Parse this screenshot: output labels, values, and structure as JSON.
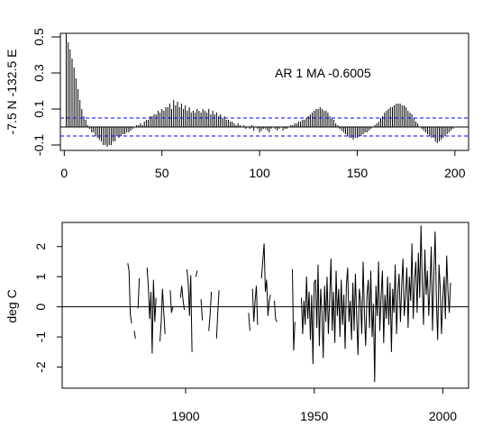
{
  "chart_data": [
    {
      "type": "bar",
      "title": "",
      "ylabel": "-7.5 N -132.5 E",
      "xlabel": "",
      "annotation": "AR 1  MA -0.6005",
      "xlim": [
        -2,
        207
      ],
      "ylim": [
        -0.13,
        0.52
      ],
      "xticks": [
        0,
        50,
        100,
        150,
        200
      ],
      "yticks": [
        -0.1,
        0.1,
        0.3,
        0.5
      ],
      "ytick_labels": [
        "-0.1",
        "0.1",
        "0.3",
        "0.5"
      ],
      "confidence_band": [
        -0.05,
        0.05
      ],
      "lags": [
        1,
        2,
        3,
        4,
        5,
        6,
        7,
        8,
        9,
        10,
        11,
        12,
        13,
        14,
        15,
        16,
        17,
        18,
        19,
        20,
        21,
        22,
        23,
        24,
        25,
        26,
        27,
        28,
        29,
        30,
        31,
        32,
        33,
        34,
        35,
        36,
        37,
        38,
        39,
        40,
        41,
        42,
        43,
        44,
        45,
        46,
        47,
        48,
        49,
        50,
        51,
        52,
        53,
        54,
        55,
        56,
        57,
        58,
        59,
        60,
        61,
        62,
        63,
        64,
        65,
        66,
        67,
        68,
        69,
        70,
        71,
        72,
        73,
        74,
        75,
        76,
        77,
        78,
        79,
        80,
        81,
        82,
        83,
        84,
        85,
        86,
        87,
        88,
        89,
        90,
        91,
        92,
        93,
        94,
        95,
        96,
        97,
        98,
        99,
        100,
        101,
        102,
        103,
        104,
        105,
        106,
        107,
        108,
        109,
        110,
        111,
        112,
        113,
        114,
        115,
        116,
        117,
        118,
        119,
        120,
        121,
        122,
        123,
        124,
        125,
        126,
        127,
        128,
        129,
        130,
        131,
        132,
        133,
        134,
        135,
        136,
        137,
        138,
        139,
        140,
        141,
        142,
        143,
        144,
        145,
        146,
        147,
        148,
        149,
        150,
        151,
        152,
        153,
        154,
        155,
        156,
        157,
        158,
        159,
        160,
        161,
        162,
        163,
        164,
        165,
        166,
        167,
        168,
        169,
        170,
        171,
        172,
        173,
        174,
        175,
        176,
        177,
        178,
        179,
        180,
        181,
        182,
        183,
        184,
        185,
        186,
        187,
        188,
        189,
        190,
        191,
        192,
        193,
        194,
        195,
        196,
        197,
        198,
        199,
        200
      ],
      "values": [
        0.52,
        0.47,
        0.43,
        0.38,
        0.33,
        0.27,
        0.21,
        0.15,
        0.1,
        0.06,
        0.04,
        0.01,
        -0.01,
        -0.03,
        -0.03,
        -0.05,
        -0.06,
        -0.07,
        -0.08,
        -0.1,
        -0.1,
        -0.11,
        -0.1,
        -0.1,
        -0.08,
        -0.08,
        -0.05,
        -0.06,
        -0.05,
        -0.04,
        -0.04,
        -0.03,
        -0.03,
        -0.02,
        -0.01,
        0.0,
        0.01,
        0.01,
        0.02,
        0.01,
        0.03,
        0.04,
        0.04,
        0.06,
        0.06,
        0.07,
        0.07,
        0.09,
        0.08,
        0.1,
        0.09,
        0.11,
        0.11,
        0.13,
        0.1,
        0.15,
        0.12,
        0.14,
        0.11,
        0.13,
        0.1,
        0.12,
        0.09,
        0.11,
        0.08,
        0.09,
        0.08,
        0.1,
        0.09,
        0.08,
        0.1,
        0.09,
        0.08,
        0.1,
        0.07,
        0.09,
        0.07,
        0.08,
        0.06,
        0.07,
        0.05,
        0.06,
        0.04,
        0.04,
        0.03,
        0.03,
        0.02,
        0.01,
        0.02,
        0.01,
        0.0,
        0.01,
        -0.01,
        0.0,
        -0.01,
        0.01,
        -0.02,
        0.0,
        -0.01,
        -0.03,
        -0.02,
        -0.01,
        -0.01,
        -0.02,
        -0.03,
        -0.01,
        0.0,
        -0.01,
        -0.02,
        -0.01,
        0.0,
        -0.02,
        -0.01,
        -0.01,
        0.0,
        0.01,
        0.01,
        0.02,
        0.02,
        0.03,
        0.03,
        0.04,
        0.04,
        0.05,
        0.06,
        0.07,
        0.08,
        0.09,
        0.1,
        0.1,
        0.11,
        0.1,
        0.09,
        0.09,
        0.08,
        0.06,
        0.05,
        0.04,
        0.02,
        0.01,
        -0.01,
        -0.02,
        -0.03,
        -0.04,
        -0.05,
        -0.06,
        -0.06,
        -0.07,
        -0.06,
        -0.06,
        -0.05,
        -0.05,
        -0.04,
        -0.03,
        -0.03,
        -0.02,
        -0.01,
        0.0,
        0.01,
        0.02,
        0.03,
        0.05,
        0.06,
        0.08,
        0.09,
        0.1,
        0.11,
        0.11,
        0.12,
        0.13,
        0.13,
        0.13,
        0.12,
        0.12,
        0.11,
        0.09,
        0.08,
        0.07,
        0.05,
        0.03,
        0.02,
        0.0,
        -0.01,
        -0.02,
        -0.03,
        -0.04,
        -0.05,
        -0.06,
        -0.06,
        -0.08,
        -0.09,
        -0.08,
        -0.07,
        -0.06,
        -0.05,
        -0.04,
        -0.03,
        -0.02,
        -0.01,
        0.0
      ]
    },
    {
      "type": "line",
      "title": "",
      "ylabel": "deg C",
      "xlabel": "",
      "xlim": [
        1852,
        2010
      ],
      "ylim": [
        -2.7,
        2.8
      ],
      "xticks": [
        1900,
        1950,
        2000
      ],
      "yticks": [
        -2,
        -1,
        0,
        1,
        2
      ],
      "ytick_labels": [
        "-2",
        "-1",
        "0",
        "1",
        "2"
      ],
      "reference_line": 0,
      "series": [
        {
          "segments": [
            {
              "x": [
                1877.5,
                1878.0,
                1878.5,
                1879.0
              ],
              "y": [
                1.45,
                1.2,
                -0.25,
                -0.55
              ]
            },
            {
              "x": [
                1880.0,
                1880.5
              ],
              "y": [
                -0.8,
                -1.05
              ]
            },
            {
              "x": [
                1881.5,
                1882.0
              ],
              "y": [
                -0.05,
                0.95
              ]
            },
            {
              "x": [
                1885.0,
                1885.5,
                1886.0,
                1886.5,
                1887.0,
                1887.5,
                1888.0,
                1888.5
              ],
              "y": [
                1.3,
                0.7,
                -0.4,
                0.5,
                -1.55,
                0.9,
                -0.5,
                0.3
              ]
            },
            {
              "x": [
                1890.0,
                1890.5,
                1891.0,
                1891.5,
                1892.0
              ],
              "y": [
                -1.15,
                -0.5,
                0.6,
                -0.2,
                -0.9
              ]
            },
            {
              "x": [
                1894.0,
                1894.5,
                1895.0
              ],
              "y": [
                0.55,
                -0.2,
                0.0
              ]
            },
            {
              "x": [
                1898.0,
                1898.5,
                1899.0,
                1899.5
              ],
              "y": [
                0.3,
                0.7,
                0.2,
                -0.1
              ]
            },
            {
              "x": [
                1900.5,
                1901.0,
                1901.5,
                1902.0,
                1902.5
              ],
              "y": [
                1.25,
                0.8,
                -0.3,
                1.05,
                -1.5
              ]
            },
            {
              "x": [
                1904.0,
                1904.5
              ],
              "y": [
                1.0,
                1.2
              ]
            },
            {
              "x": [
                1906.0,
                1906.5
              ],
              "y": [
                0.25,
                -0.45
              ]
            },
            {
              "x": [
                1909.0,
                1909.5,
                1910.0
              ],
              "y": [
                -0.8,
                -0.3,
                0.5
              ]
            },
            {
              "x": [
                1912.0,
                1912.5,
                1913.0
              ],
              "y": [
                -1.05,
                -0.2,
                0.55
              ]
            },
            {
              "x": [
                1924.5,
                1925.0
              ],
              "y": [
                -0.2,
                -0.8
              ]
            },
            {
              "x": [
                1926.0,
                1926.5,
                1927.0,
                1927.5,
                1928.0
              ],
              "y": [
                0.6,
                -0.5,
                0.2,
                0.7,
                -0.6
              ]
            },
            {
              "x": [
                1929.5,
                1930.0,
                1930.5,
                1931.0,
                1931.5,
                1932.0,
                1932.5,
                1933.0
              ],
              "y": [
                0.95,
                1.5,
                2.1,
                0.5,
                0.9,
                -0.3,
                0.2,
                0.4
              ]
            },
            {
              "x": [
                1934.5,
                1935.0,
                1935.5
              ],
              "y": [
                0.2,
                -0.4,
                -0.5
              ]
            },
            {
              "x": [
                1941.5,
                1942.0,
                1942.5
              ],
              "y": [
                1.25,
                -1.45,
                -0.5
              ]
            },
            {
              "x": [
                1945.0,
                1945.5,
                1946.0,
                1946.5,
                1947.0,
                1947.5,
                1948.0,
                1948.5,
                1949.0,
                1949.5,
                1950.0,
                1950.5,
                1951.0,
                1951.5,
                1952.0,
                1952.5,
                1953.0,
                1953.5,
                1954.0,
                1954.5,
                1955.0,
                1955.5,
                1956.0,
                1956.5,
                1957.0,
                1957.5,
                1958.0,
                1958.5,
                1959.0,
                1959.5,
                1960.0,
                1960.5,
                1961.0,
                1961.5,
                1962.0,
                1962.5,
                1963.0,
                1963.5,
                1964.0,
                1964.5,
                1965.0,
                1965.5,
                1966.0,
                1966.5,
                1967.0,
                1967.5,
                1968.0,
                1968.5,
                1969.0,
                1969.5,
                1970.0,
                1970.5,
                1971.0,
                1971.5,
                1972.0,
                1972.5,
                1973.0,
                1973.5,
                1974.0,
                1974.5,
                1975.0,
                1975.5,
                1976.0,
                1976.5,
                1977.0,
                1977.5,
                1978.0,
                1978.5,
                1979.0,
                1979.5,
                1980.0,
                1980.5,
                1981.0,
                1981.5,
                1982.0,
                1982.5,
                1983.0,
                1983.5,
                1984.0,
                1984.5,
                1985.0,
                1985.5,
                1986.0,
                1986.5,
                1987.0,
                1987.5,
                1988.0,
                1988.5,
                1989.0,
                1989.5,
                1990.0,
                1990.5,
                1991.0,
                1991.5,
                1992.0,
                1992.5,
                1993.0,
                1993.5,
                1994.0,
                1994.5,
                1995.0,
                1995.5,
                1996.0,
                1996.5,
                1997.0,
                1997.5,
                1998.0,
                1998.5,
                1999.0,
                1999.5,
                2000.0,
                2000.5,
                2001.0,
                2001.5,
                2002.0,
                2002.5,
                2003.0
              ],
              "y": [
                0.3,
                -0.9,
                0.2,
                -0.6,
                1.0,
                -0.4,
                0.5,
                -1.1,
                0.4,
                -1.9,
                0.8,
                0.9,
                -0.7,
                1.4,
                -1.3,
                0.6,
                -0.2,
                -1.7,
                0.7,
                -0.5,
                1.0,
                -0.9,
                0.3,
                1.6,
                -0.8,
                0.5,
                -1.2,
                1.2,
                -0.3,
                0.6,
                -1.0,
                0.9,
                -0.6,
                0.4,
                -1.4,
                0.7,
                1.3,
                -0.5,
                0.2,
                -1.1,
                0.8,
                -0.8,
                1.1,
                -0.3,
                -1.6,
                0.6,
                0.2,
                -0.9,
                1.5,
                -0.2,
                -1.3,
                0.4,
                0.9,
                -0.7,
                1.2,
                -1.0,
                0.1,
                -2.5,
                0.7,
                -0.3,
                1.5,
                -0.8,
                0.3,
                1.2,
                -1.2,
                0.4,
                -0.4,
                1.0,
                -0.6,
                0.8,
                -1.5,
                0.6,
                -0.2,
                1.4,
                -0.9,
                0.5,
                1.1,
                -0.5,
                0.7,
                1.6,
                -0.3,
                0.4,
                1.3,
                -0.7,
                1.0,
                0.2,
                2.1,
                -0.4,
                0.9,
                1.5,
                -0.2,
                1.8,
                0.3,
                2.7,
                0.8,
                -0.6,
                1.9,
                0.4,
                1.2,
                -0.3,
                0.7,
                2.0,
                -0.8,
                1.1,
                2.5,
                0.2,
                -1.1,
                1.4,
                0.6,
                -0.9,
                0.3,
                1.0,
                -0.4,
                1.7,
                0.5,
                -0.2,
                0.8
              ]
            }
          ]
        }
      ]
    }
  ]
}
